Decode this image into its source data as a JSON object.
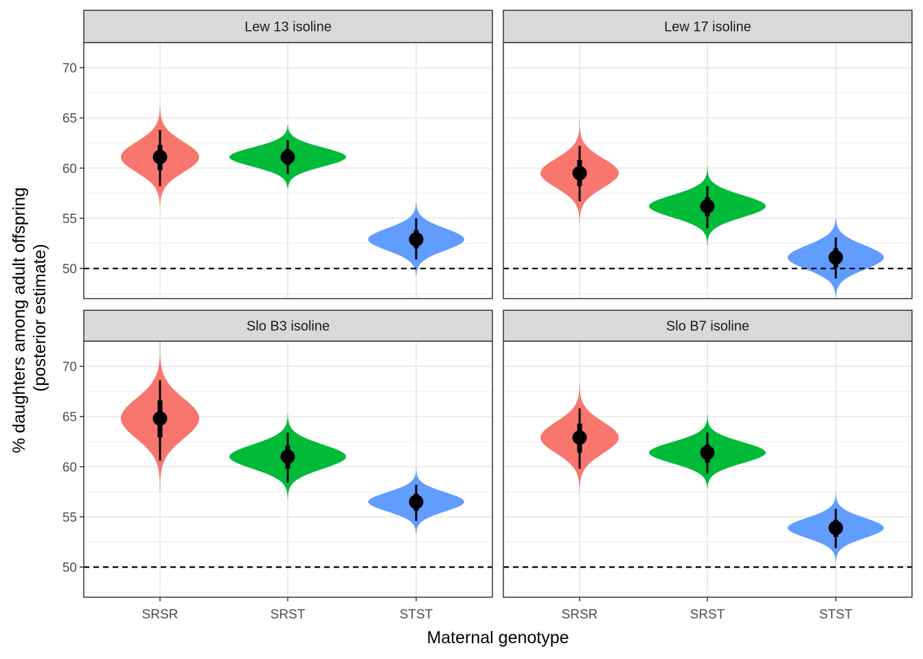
{
  "chart_data": {
    "type": "violin",
    "xlabel": "Maternal genotype",
    "ylabel_lines": [
      "% daughters among adult offspring",
      "(posterior estimate)"
    ],
    "categories": [
      "SRSR",
      "SRST",
      "STST"
    ],
    "category_colors": [
      "#F8766D",
      "#00BA38",
      "#619CFF"
    ],
    "ylim": [
      47,
      72.5
    ],
    "yticks": [
      50,
      55,
      60,
      65,
      70
    ],
    "reference_line": 50,
    "grid": true,
    "facets": [
      {
        "name": "Lew 13 isoline",
        "groups": [
          {
            "category": "SRSR",
            "median": 61.1,
            "inner": [
              59.8,
              62.3
            ],
            "outer": [
              58.2,
              63.8
            ],
            "range": [
              56.0,
              66.2
            ],
            "sd": 1.5
          },
          {
            "category": "SRST",
            "median": 61.1,
            "inner": [
              60.3,
              61.9
            ],
            "outer": [
              59.4,
              62.8
            ],
            "range": [
              58.0,
              64.3
            ],
            "sd": 0.95
          },
          {
            "category": "STST",
            "median": 52.9,
            "inner": [
              52.0,
              53.8
            ],
            "outer": [
              50.9,
              55.0
            ],
            "range": [
              49.3,
              56.6
            ],
            "sd": 1.1
          }
        ]
      },
      {
        "name": "Lew 17 isoline",
        "groups": [
          {
            "category": "SRSR",
            "median": 59.5,
            "inner": [
              58.2,
              60.8
            ],
            "outer": [
              56.7,
              62.2
            ],
            "range": [
              54.6,
              64.8
            ],
            "sd": 1.45
          },
          {
            "category": "SRST",
            "median": 56.2,
            "inner": [
              55.2,
              57.1
            ],
            "outer": [
              54.0,
              58.2
            ],
            "range": [
              52.3,
              60.2
            ],
            "sd": 1.1
          },
          {
            "category": "STST",
            "median": 51.1,
            "inner": [
              50.1,
              52.0
            ],
            "outer": [
              49.0,
              53.1
            ],
            "range": [
              47.2,
              55.0
            ],
            "sd": 1.2
          }
        ]
      },
      {
        "name": "Slo B3 isoline",
        "groups": [
          {
            "category": "SRSR",
            "median": 64.8,
            "inner": [
              62.9,
              66.6
            ],
            "outer": [
              60.6,
              68.6
            ],
            "range": [
              57.5,
              72.5
            ],
            "sd": 2.0
          },
          {
            "category": "SRST",
            "median": 61.0,
            "inner": [
              59.8,
              62.1
            ],
            "outer": [
              58.4,
              63.4
            ],
            "range": [
              56.8,
              65.3
            ],
            "sd": 1.2
          },
          {
            "category": "STST",
            "median": 56.5,
            "inner": [
              55.6,
              57.3
            ],
            "outer": [
              54.6,
              58.2
            ],
            "range": [
              53.2,
              60.0
            ],
            "sd": 0.95
          }
        ]
      },
      {
        "name": "Slo B7 isoline",
        "groups": [
          {
            "category": "SRSR",
            "median": 62.9,
            "inner": [
              61.4,
              64.3
            ],
            "outer": [
              59.8,
              65.8
            ],
            "range": [
              57.5,
              68.3
            ],
            "sd": 1.55
          },
          {
            "category": "SRST",
            "median": 61.4,
            "inner": [
              60.4,
              62.2
            ],
            "outer": [
              59.3,
              63.4
            ],
            "range": [
              57.8,
              65.2
            ],
            "sd": 1.05
          },
          {
            "category": "STST",
            "median": 53.9,
            "inner": [
              53.0,
              54.7
            ],
            "outer": [
              51.9,
              55.8
            ],
            "range": [
              50.3,
              57.5
            ],
            "sd": 1.0
          }
        ]
      }
    ]
  }
}
